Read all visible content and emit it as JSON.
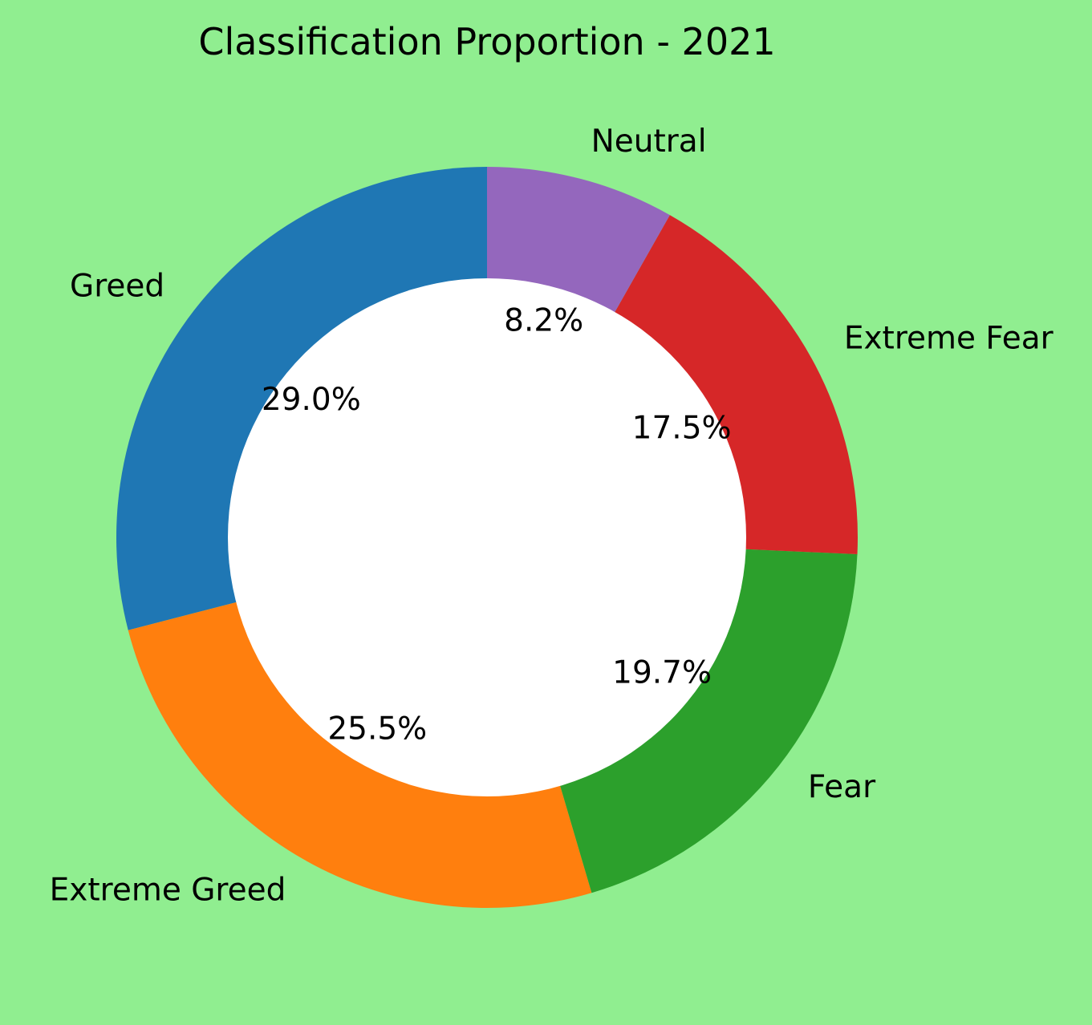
{
  "chart_data": {
    "type": "pie",
    "variant": "donut",
    "title": "Classification Proportion - 2021",
    "background_color": "#90EE90",
    "hole_color": "#FFFFFF",
    "start_angle_deg": 90,
    "direction": "counterclockwise",
    "legend": "none",
    "slices": [
      {
        "label": "Greed",
        "value": 29.0,
        "pct_label": "29.0%",
        "color": "#1F77B4"
      },
      {
        "label": "Extreme Greed",
        "value": 25.5,
        "pct_label": "25.5%",
        "color": "#FF7F0E"
      },
      {
        "label": "Fear",
        "value": 19.7,
        "pct_label": "19.7%",
        "color": "#2CA02C"
      },
      {
        "label": "Extreme Fear",
        "value": 17.5,
        "pct_label": "17.5%",
        "color": "#D62728"
      },
      {
        "label": "Neutral",
        "value": 8.2,
        "pct_label": "8.2%",
        "color": "#9467BD"
      }
    ]
  }
}
